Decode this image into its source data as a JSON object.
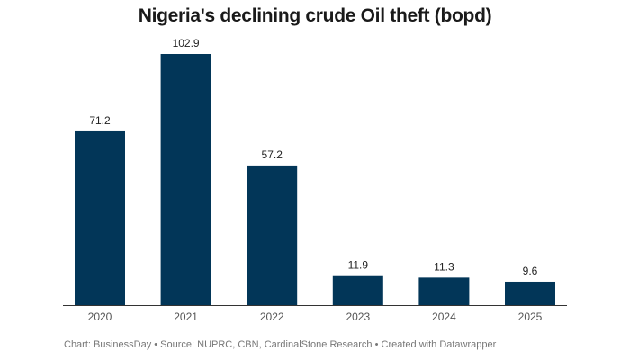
{
  "chart_data": {
    "type": "bar",
    "title": "Nigeria's declining crude Oil theft (bopd)",
    "categories": [
      "2020",
      "2021",
      "2022",
      "2023",
      "2024",
      "2025"
    ],
    "values": [
      71.2,
      102.9,
      57.2,
      11.9,
      11.3,
      9.6
    ],
    "value_labels": [
      "71.2",
      "102.9",
      "57.2",
      "11.9",
      "11.3",
      "9.6"
    ],
    "xlabel": "",
    "ylabel": "",
    "ylim": [
      0,
      102.9
    ],
    "grid": false,
    "bar_color": "#023658"
  },
  "footer": "Chart: BusinessDay • Source: NUPRC, CBN, CardinalStone Research • Created with Datawrapper"
}
